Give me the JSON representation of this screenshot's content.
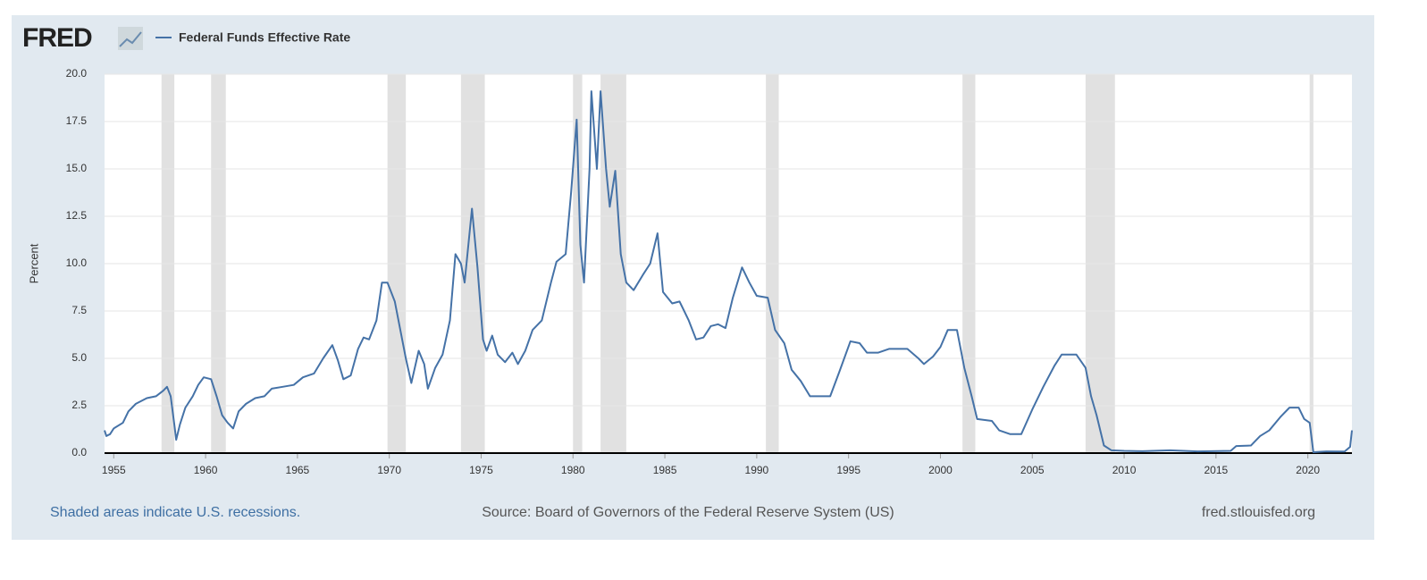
{
  "logo": "FRED",
  "chart_data": {
    "type": "line",
    "ylabel": "Percent",
    "footnote": "Shaded areas indicate U.S. recessions.",
    "source": "Source: Board of Governors of the Federal Reserve System (US)",
    "site": "fred.stlouisfed.org",
    "grid": true,
    "xlim": [
      1954.5,
      2022.4
    ],
    "xticks": [
      1955,
      1960,
      1965,
      1970,
      1975,
      1980,
      1985,
      1990,
      1995,
      2000,
      2005,
      2010,
      2015,
      2020
    ],
    "ylim": [
      0,
      20
    ],
    "yticks": [
      {
        "value": 0,
        "label": "0.0"
      },
      {
        "value": 2.5,
        "label": "2.5"
      },
      {
        "value": 5,
        "label": "5.0"
      },
      {
        "value": 7.5,
        "label": "7.5"
      },
      {
        "value": 10,
        "label": "10.0"
      },
      {
        "value": 12.5,
        "label": "12.5"
      },
      {
        "value": 15,
        "label": "15.0"
      },
      {
        "value": 17.5,
        "label": "17.5"
      },
      {
        "value": 20,
        "label": "20.0"
      }
    ],
    "recessions": [
      [
        1957.6,
        1958.3
      ],
      [
        1960.3,
        1961.1
      ],
      [
        1969.9,
        1970.9
      ],
      [
        1973.9,
        1975.2
      ],
      [
        1980.0,
        1980.5
      ],
      [
        1981.5,
        1982.9
      ],
      [
        1990.5,
        1991.2
      ],
      [
        2001.2,
        2001.9
      ],
      [
        2007.9,
        2009.5
      ],
      [
        2020.1,
        2020.3
      ]
    ],
    "recession_color": "#e1e1e1",
    "x": [
      1954.5,
      1954.6,
      1954.8,
      1955.0,
      1955.5,
      1955.8,
      1956.2,
      1956.8,
      1957.3,
      1957.7,
      1957.9,
      1958.1,
      1958.3,
      1958.4,
      1958.6,
      1958.9,
      1959.3,
      1959.6,
      1959.9,
      1960.3,
      1960.6,
      1960.9,
      1961.2,
      1961.5,
      1961.8,
      1962.2,
      1962.7,
      1963.2,
      1963.6,
      1964.2,
      1964.8,
      1965.3,
      1965.9,
      1966.4,
      1966.9,
      1967.2,
      1967.5,
      1967.9,
      1968.3,
      1968.6,
      1968.9,
      1969.3,
      1969.6,
      1969.9,
      1970.3,
      1970.6,
      1970.9,
      1971.2,
      1971.6,
      1971.9,
      1972.1,
      1972.5,
      1972.9,
      1973.3,
      1973.6,
      1973.9,
      1974.1,
      1974.5,
      1974.8,
      1975.1,
      1975.3,
      1975.6,
      1975.9,
      1976.3,
      1976.7,
      1977.0,
      1977.4,
      1977.8,
      1978.3,
      1978.8,
      1979.1,
      1979.6,
      1979.9,
      1980.2,
      1980.4,
      1980.6,
      1980.9,
      1981.0,
      1981.3,
      1981.5,
      1981.8,
      1982.0,
      1982.3,
      1982.6,
      1982.9,
      1983.3,
      1983.8,
      1984.2,
      1984.6,
      1984.9,
      1985.4,
      1985.8,
      1986.3,
      1986.7,
      1987.1,
      1987.5,
      1987.9,
      1988.3,
      1988.7,
      1989.2,
      1989.6,
      1990.0,
      1990.6,
      1991.0,
      1991.5,
      1991.9,
      1992.4,
      1992.9,
      1993.5,
      1994.0,
      1994.5,
      1995.1,
      1995.6,
      1996.0,
      1996.6,
      1997.2,
      1998.2,
      1998.8,
      1999.1,
      1999.6,
      2000.0,
      2000.4,
      2000.9,
      2001.3,
      2001.7,
      2002.0,
      2002.8,
      2003.2,
      2003.8,
      2004.4,
      2005.0,
      2005.6,
      2006.2,
      2006.6,
      2007.4,
      2007.9,
      2008.2,
      2008.5,
      2008.9,
      2009.3,
      2010.0,
      2011.0,
      2012.5,
      2014.0,
      2015.8,
      2016.1,
      2016.9,
      2017.4,
      2017.9,
      2018.5,
      2019.0,
      2019.5,
      2019.8,
      2020.1,
      2020.3,
      2021.0,
      2022.0,
      2022.3,
      2022.4
    ],
    "series": [
      {
        "name": "Federal Funds Effective Rate",
        "color": "#4572a7",
        "values": [
          1.2,
          0.9,
          1.0,
          1.3,
          1.6,
          2.2,
          2.6,
          2.9,
          3.0,
          3.3,
          3.5,
          3.0,
          1.5,
          0.7,
          1.5,
          2.4,
          3.0,
          3.6,
          4.0,
          3.9,
          3.0,
          2.0,
          1.6,
          1.3,
          2.2,
          2.6,
          2.9,
          3.0,
          3.4,
          3.5,
          3.6,
          4.0,
          4.2,
          5.0,
          5.7,
          4.9,
          3.9,
          4.1,
          5.5,
          6.1,
          6.0,
          7.0,
          9.0,
          9.0,
          8.0,
          6.5,
          5.0,
          3.7,
          5.4,
          4.7,
          3.4,
          4.5,
          5.2,
          7.0,
          10.5,
          10.0,
          9.0,
          12.9,
          9.8,
          6.0,
          5.4,
          6.2,
          5.2,
          4.8,
          5.3,
          4.7,
          5.4,
          6.5,
          7.0,
          9.0,
          10.1,
          10.5,
          13.8,
          17.6,
          11.0,
          9.0,
          15.0,
          19.1,
          15.0,
          19.1,
          15.0,
          13.0,
          14.9,
          10.5,
          9.0,
          8.6,
          9.4,
          10.0,
          11.6,
          8.5,
          7.9,
          8.0,
          7.0,
          6.0,
          6.1,
          6.7,
          6.8,
          6.6,
          8.2,
          9.8,
          9.0,
          8.3,
          8.2,
          6.5,
          5.8,
          4.4,
          3.8,
          3.0,
          3.0,
          3.0,
          4.3,
          5.9,
          5.8,
          5.3,
          5.3,
          5.5,
          5.5,
          5.0,
          4.7,
          5.1,
          5.6,
          6.5,
          6.5,
          4.5,
          3.0,
          1.8,
          1.7,
          1.2,
          1.0,
          1.0,
          2.3,
          3.5,
          4.6,
          5.2,
          5.2,
          4.5,
          3.0,
          2.0,
          0.4,
          0.15,
          0.12,
          0.1,
          0.15,
          0.09,
          0.12,
          0.37,
          0.4,
          0.9,
          1.2,
          1.9,
          2.4,
          2.4,
          1.8,
          1.6,
          0.05,
          0.09,
          0.08,
          0.33,
          1.2
        ]
      }
    ]
  }
}
